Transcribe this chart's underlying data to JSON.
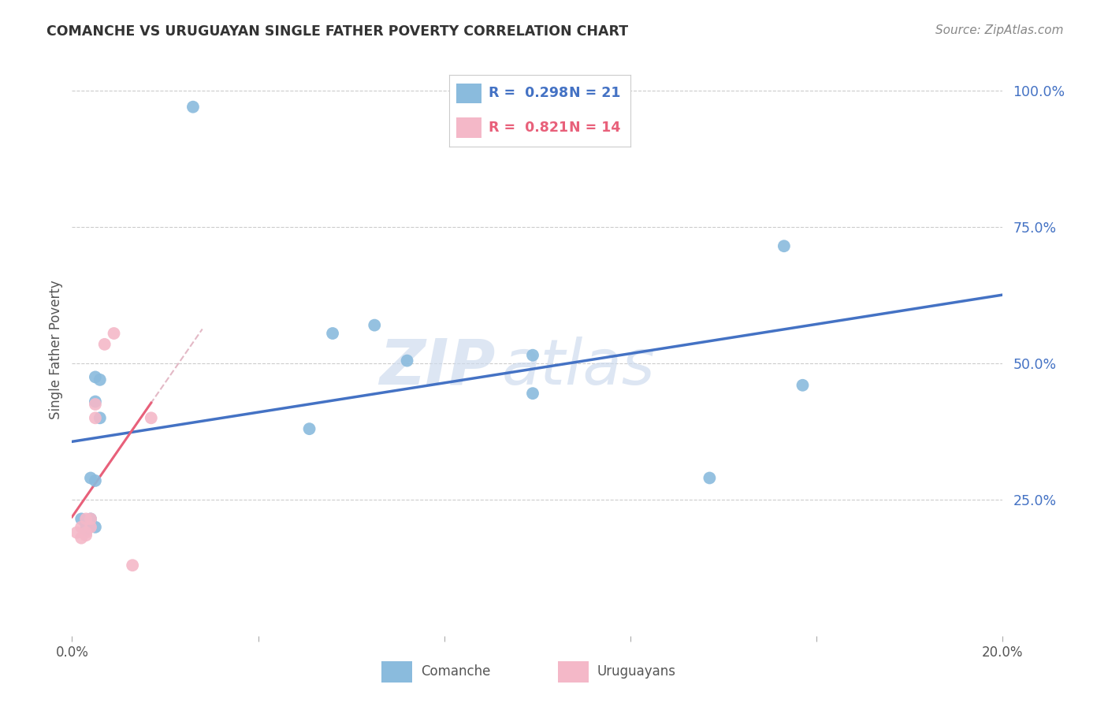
{
  "title": "COMANCHE VS URUGUAYAN SINGLE FATHER POVERTY CORRELATION CHART",
  "source": "Source: ZipAtlas.com",
  "ylabel": "Single Father Poverty",
  "xlim": [
    0.0,
    0.2
  ],
  "ylim": [
    0.0,
    1.05
  ],
  "comanche_points": [
    [
      0.002,
      0.215
    ],
    [
      0.003,
      0.205
    ],
    [
      0.003,
      0.195
    ],
    [
      0.004,
      0.215
    ],
    [
      0.004,
      0.29
    ],
    [
      0.005,
      0.2
    ],
    [
      0.005,
      0.285
    ],
    [
      0.005,
      0.43
    ],
    [
      0.005,
      0.475
    ],
    [
      0.006,
      0.47
    ],
    [
      0.006,
      0.4
    ],
    [
      0.026,
      0.97
    ],
    [
      0.051,
      0.38
    ],
    [
      0.056,
      0.555
    ],
    [
      0.065,
      0.57
    ],
    [
      0.072,
      0.505
    ],
    [
      0.099,
      0.515
    ],
    [
      0.099,
      0.445
    ],
    [
      0.137,
      0.29
    ],
    [
      0.153,
      0.715
    ],
    [
      0.157,
      0.46
    ]
  ],
  "uruguayan_points": [
    [
      0.001,
      0.19
    ],
    [
      0.002,
      0.18
    ],
    [
      0.002,
      0.2
    ],
    [
      0.003,
      0.185
    ],
    [
      0.003,
      0.19
    ],
    [
      0.003,
      0.215
    ],
    [
      0.004,
      0.2
    ],
    [
      0.004,
      0.215
    ],
    [
      0.005,
      0.4
    ],
    [
      0.005,
      0.425
    ],
    [
      0.007,
      0.535
    ],
    [
      0.009,
      0.555
    ],
    [
      0.013,
      0.13
    ],
    [
      0.017,
      0.4
    ]
  ],
  "comanche_color": "#8abbdd",
  "uruguayan_color": "#f4b8c8",
  "comanche_line_color": "#4472c4",
  "uruguayan_line_color": "#e8607a",
  "uruguayan_dash_color": "#dda8b8",
  "r_comanche": "0.298",
  "n_comanche": "21",
  "r_uruguayan": "0.821",
  "n_uruguayan": "14",
  "background_color": "#ffffff",
  "grid_color": "#cccccc",
  "ytick_color": "#4472c4"
}
